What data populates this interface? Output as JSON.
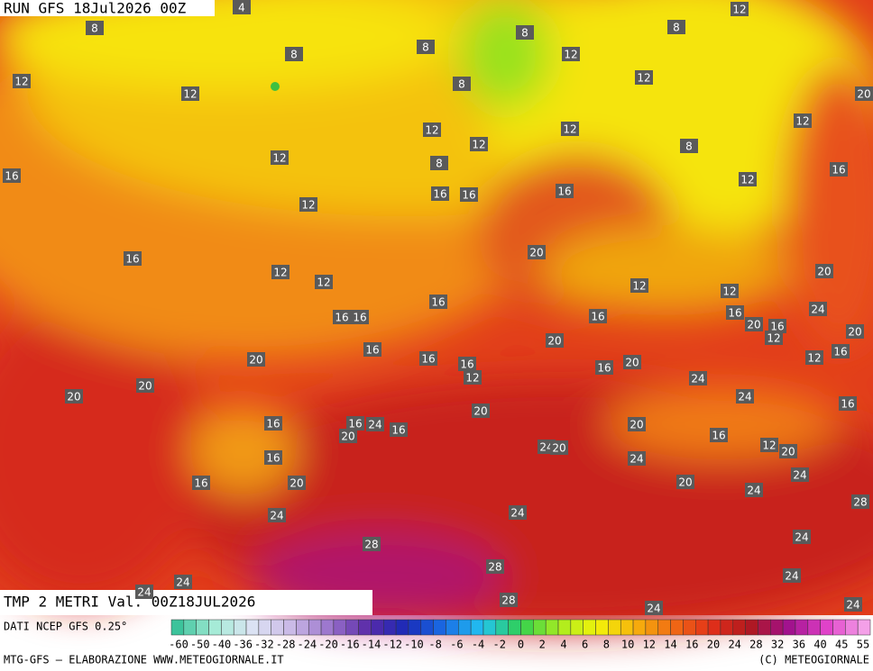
{
  "header": {
    "run": "RUN GFS 18Jul2026 00Z"
  },
  "map": {
    "title": "TMP 2 METRI Val. 00Z18JUL2026",
    "labels": [
      4,
      12,
      8,
      8,
      8,
      8,
      8,
      12,
      12,
      12,
      12,
      8,
      20,
      12,
      12,
      12,
      12,
      8,
      12,
      8,
      16,
      16,
      12,
      16,
      16,
      16,
      12,
      20,
      16,
      12,
      12,
      20,
      12,
      12,
      16,
      16,
      24,
      16,
      16,
      16,
      20,
      16,
      12,
      20,
      20,
      16,
      16,
      20,
      16,
      16,
      16,
      20,
      12,
      12,
      24,
      24,
      16,
      20,
      20,
      20,
      16,
      16,
      24,
      16,
      20,
      20,
      16,
      12,
      20,
      24,
      20,
      24,
      16,
      24,
      16,
      20,
      20,
      24,
      28,
      24,
      24,
      24,
      28,
      28,
      24,
      24,
      24,
      28,
      24,
      24
    ]
  },
  "footer": {
    "source": "DATI NCEP GFS 0.25°",
    "credit": "MTG-GFS — ELABORAZIONE WWW.METEOGIORNALE.IT",
    "copyright": "(C) METEOGIORNALE",
    "scale": [
      -60,
      -50,
      -40,
      -36,
      -32,
      -28,
      -24,
      -20,
      -16,
      -14,
      -12,
      -10,
      -8,
      -6,
      -4,
      -2,
      0,
      2,
      4,
      6,
      8,
      10,
      12,
      14,
      16,
      20,
      24,
      28,
      32,
      36,
      40,
      45,
      55
    ]
  }
}
